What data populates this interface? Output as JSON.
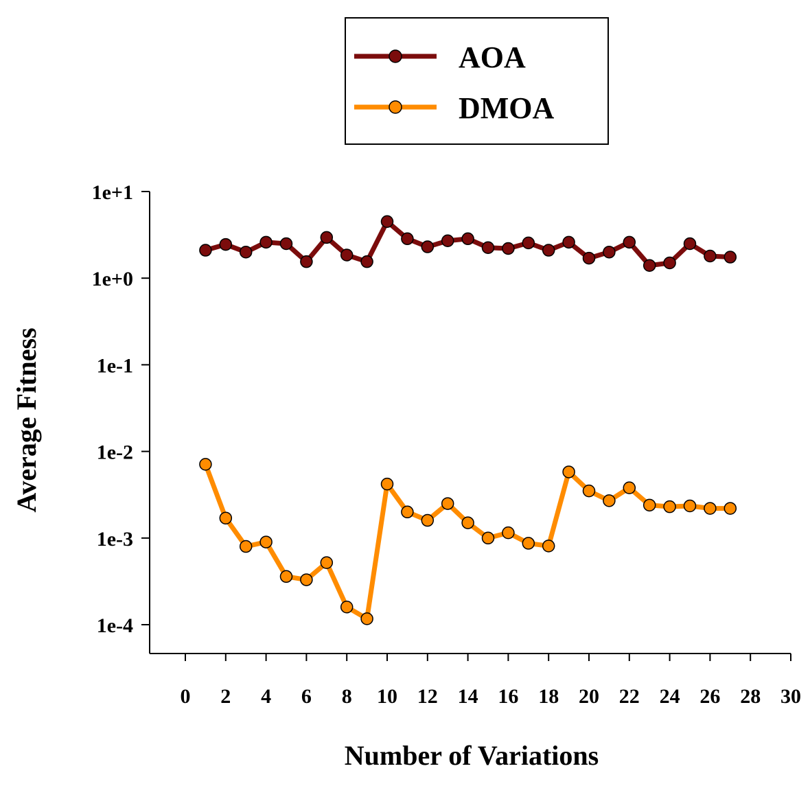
{
  "chart_data": {
    "type": "line",
    "title": "",
    "xlabel": "Number of Variations",
    "ylabel": "Average Fitness",
    "yscale": "log",
    "xlim": [
      -2,
      30
    ],
    "ylim": [
      3e-05,
      10
    ],
    "xticks": [
      0,
      2,
      4,
      6,
      8,
      10,
      12,
      14,
      16,
      18,
      20,
      22,
      24,
      26,
      28,
      30
    ],
    "xtick_labels": [
      "0",
      "2",
      "4",
      "6",
      "8",
      "10",
      "12",
      "14",
      "16",
      "18",
      "20",
      "22",
      "24",
      "26",
      "28",
      "30"
    ],
    "yticks": [
      10,
      1,
      0.1,
      0.01,
      0.001,
      0.0001
    ],
    "ytick_labels": [
      "1e+1",
      "1e+0",
      "1e-1",
      "1e-2",
      "1e-3",
      "1e-4"
    ],
    "grid": false,
    "legend_position": "top-center",
    "x": [
      1,
      2,
      3,
      4,
      5,
      6,
      7,
      8,
      9,
      10,
      11,
      12,
      13,
      14,
      15,
      16,
      17,
      18,
      19,
      20,
      21,
      22,
      23,
      24,
      25,
      26,
      27
    ],
    "series": [
      {
        "name": "AOA",
        "color": "#7b0c0c",
        "values": [
          2.1,
          2.45,
          2.0,
          2.6,
          2.5,
          1.55,
          2.95,
          1.85,
          1.55,
          4.5,
          2.85,
          2.3,
          2.7,
          2.85,
          2.25,
          2.2,
          2.55,
          2.1,
          2.6,
          1.7,
          2.0,
          2.6,
          1.4,
          1.5,
          2.5,
          1.8,
          1.75
        ]
      },
      {
        "name": "DMOA",
        "color": "#ff8c00",
        "values": [
          0.0071,
          0.0017,
          0.0008,
          0.0009,
          0.00036,
          0.00033,
          0.00052,
          0.00016,
          0.000117,
          0.0042,
          0.002,
          0.0016,
          0.0025,
          0.0015,
          0.001,
          0.00115,
          0.00087,
          0.00081,
          0.0058,
          0.0035,
          0.0027,
          0.0038,
          0.0024,
          0.0023,
          0.00235,
          0.0022,
          0.0022
        ]
      }
    ]
  }
}
